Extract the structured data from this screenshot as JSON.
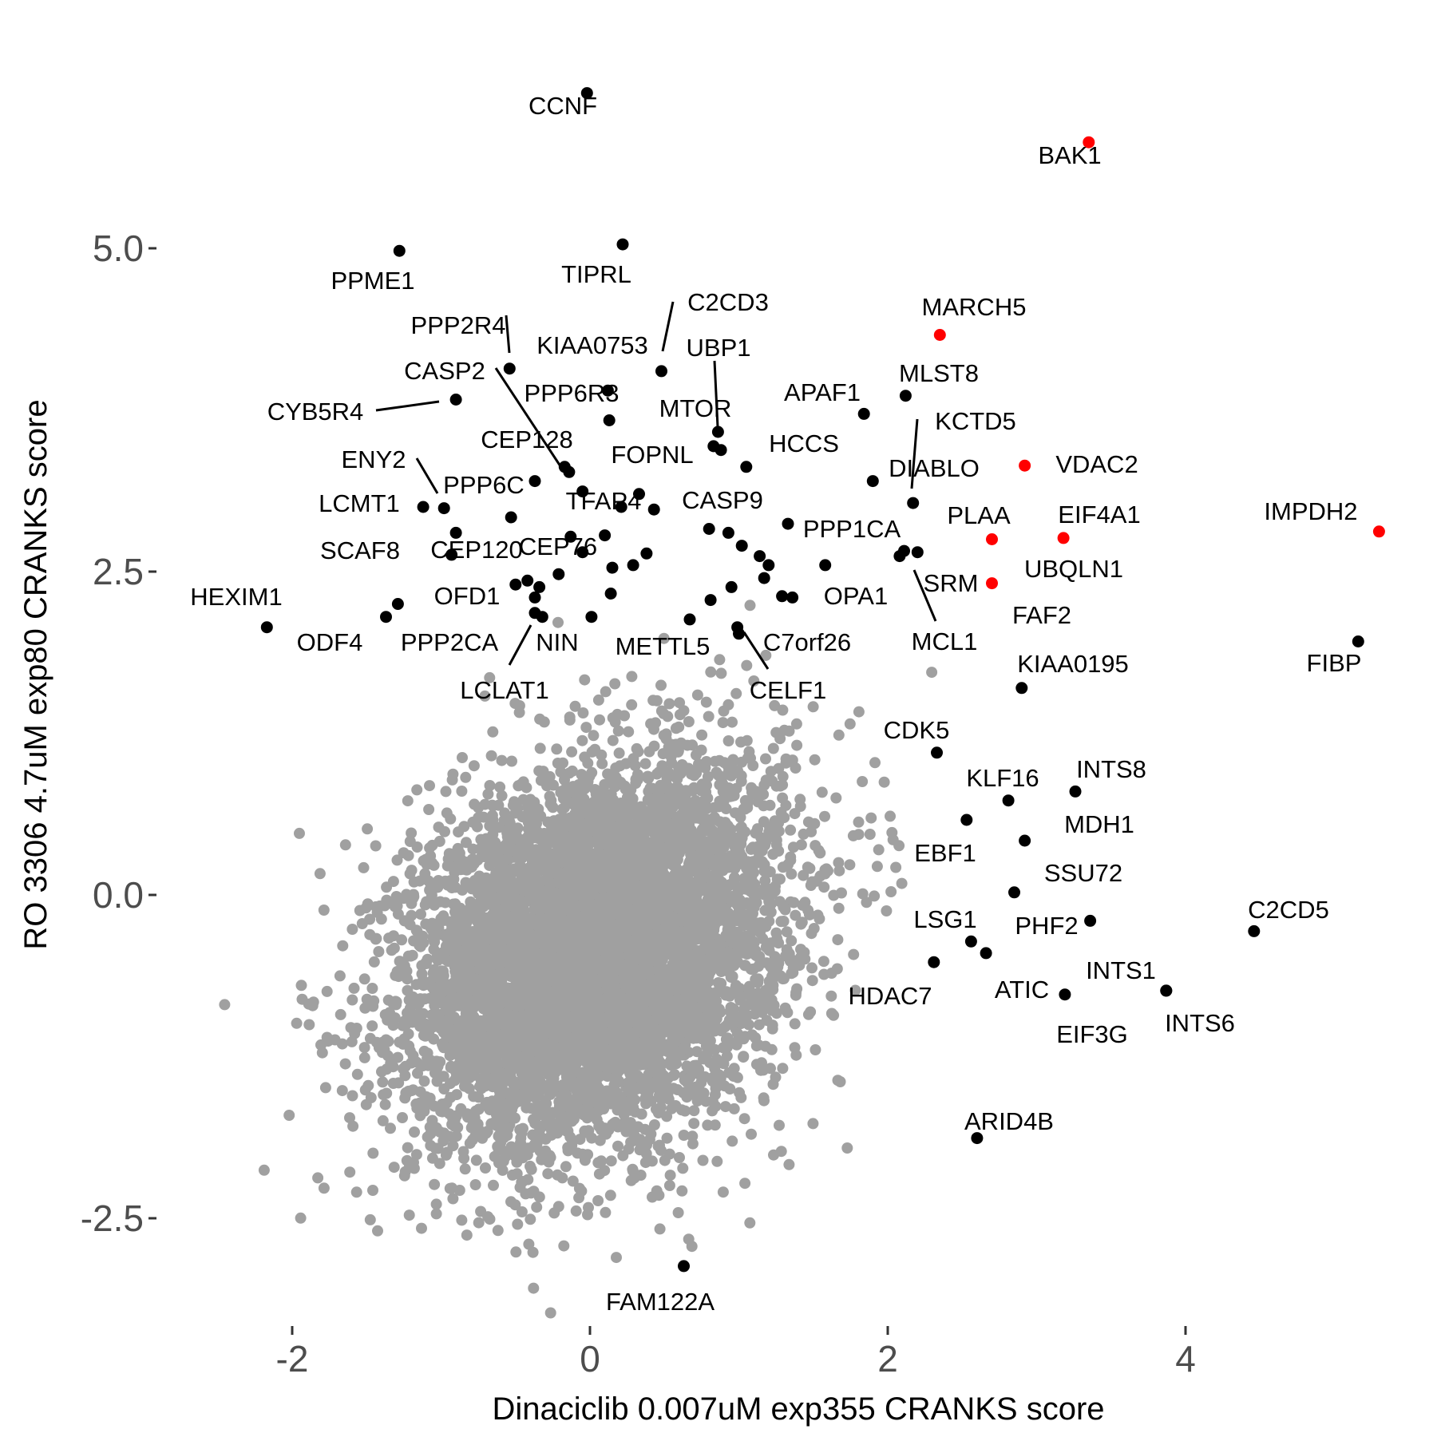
{
  "chart_data": {
    "type": "scatter",
    "title": "",
    "xlabel": "Dinaciclib 0.007uM exp355 CRANKS score",
    "ylabel": "RO 3306 4.7uM exp80 CRANKS score",
    "xlim": [
      -2.52,
      5.35
    ],
    "ylim": [
      -3.2,
      6.6
    ],
    "x_ticks": [
      -2,
      0,
      2,
      4
    ],
    "x_tick_labels": [
      "-2",
      "0",
      "2",
      "4"
    ],
    "y_ticks": [
      -2.5,
      0,
      2.5,
      5
    ],
    "y_tick_labels": [
      "-2.5",
      "0.0",
      "2.5",
      "5.0"
    ],
    "grid": false,
    "legend": "none",
    "colors": {
      "background_points": "#a0a0a0",
      "highlight": "#000000",
      "red": "#ff0000",
      "tick_text": "#4d4d4d"
    },
    "background_cloud": {
      "center": [
        0.05,
        -0.45
      ],
      "sd": [
        0.62,
        0.72
      ],
      "color": "#a0a0a0"
    },
    "labeled_points": [
      {
        "label": "CCNF",
        "x": -0.02,
        "y": 6.2,
        "color": "black"
      },
      {
        "label": "BAK1",
        "x": 3.35,
        "y": 5.82,
        "color": "red"
      },
      {
        "label": "PPME1",
        "x": -1.28,
        "y": 4.98,
        "color": "black"
      },
      {
        "label": "TIPRL",
        "x": 0.22,
        "y": 5.03,
        "color": "black"
      },
      {
        "label": "MARCH5",
        "x": 2.35,
        "y": 4.33,
        "color": "red"
      },
      {
        "label": "C2CD3",
        "x": 0.48,
        "y": 4.05,
        "color": "black"
      },
      {
        "label": "UBP1",
        "x": 0.86,
        "y": 3.58,
        "color": "black"
      },
      {
        "label": "PPP2R4",
        "x": -0.54,
        "y": 4.07,
        "color": "black"
      },
      {
        "label": "KIAA0753",
        "x": 0.12,
        "y": 3.9,
        "color": "black"
      },
      {
        "label": "CASP2",
        "x": -0.14,
        "y": 3.27,
        "color": "black"
      },
      {
        "label": "CYB5R4",
        "x": -0.9,
        "y": 3.83,
        "color": "black"
      },
      {
        "label": "PPP6R3",
        "x": 0.13,
        "y": 3.67,
        "color": "black"
      },
      {
        "label": "MTOR",
        "x": 0.88,
        "y": 3.44,
        "color": "black"
      },
      {
        "label": "APAF1",
        "x": 1.84,
        "y": 3.72,
        "color": "black"
      },
      {
        "label": "MLST8",
        "x": 2.12,
        "y": 3.86,
        "color": "black"
      },
      {
        "label": "KCTD5",
        "x": 2.17,
        "y": 3.03,
        "color": "black"
      },
      {
        "label": "CEP128",
        "x": -0.17,
        "y": 3.31,
        "color": "black"
      },
      {
        "label": "FOPNL",
        "x": 0.83,
        "y": 3.47,
        "color": "black"
      },
      {
        "label": "HCCS",
        "x": 1.05,
        "y": 3.31,
        "color": "black"
      },
      {
        "label": "ENY2",
        "x": -0.98,
        "y": 2.99,
        "color": "black"
      },
      {
        "label": "DIABLO",
        "x": 1.9,
        "y": 3.2,
        "color": "black"
      },
      {
        "label": "VDAC2",
        "x": 2.92,
        "y": 3.32,
        "color": "red"
      },
      {
        "label": "PPP6C",
        "x": -0.37,
        "y": 3.2,
        "color": "black"
      },
      {
        "label": "LCMT1",
        "x": -1.12,
        "y": 3.0,
        "color": "black"
      },
      {
        "label": "TFAP4",
        "x": 0.33,
        "y": 3.1,
        "color": "black"
      },
      {
        "label": "CASP9",
        "x": 0.43,
        "y": 2.98,
        "color": "black"
      },
      {
        "label": "PLAA",
        "x": 2.7,
        "y": 2.75,
        "color": "red"
      },
      {
        "label": "EIF4A1",
        "x": 3.18,
        "y": 2.76,
        "color": "red"
      },
      {
        "label": "IMPDH2",
        "x": 5.3,
        "y": 2.81,
        "color": "red"
      },
      {
        "label": "SCAF8",
        "x": -0.9,
        "y": 2.8,
        "color": "black"
      },
      {
        "label": "CEP120",
        "x": -0.93,
        "y": 2.63,
        "color": "black"
      },
      {
        "label": "CEP76",
        "x": -0.13,
        "y": 2.77,
        "color": "black"
      },
      {
        "label": "PPP1CA",
        "x": 1.33,
        "y": 2.87,
        "color": "black"
      },
      {
        "label": "SRM",
        "x": 2.2,
        "y": 2.65,
        "color": "black"
      },
      {
        "label": "UBQLN1",
        "x": 2.7,
        "y": 2.41,
        "color": "red"
      },
      {
        "label": "HEXIM1",
        "x": -2.17,
        "y": 2.07,
        "color": "black"
      },
      {
        "label": "OFD1",
        "x": -0.42,
        "y": 2.43,
        "color": "black"
      },
      {
        "label": "OPA1",
        "x": 1.58,
        "y": 2.55,
        "color": "black"
      },
      {
        "label": "MCL1",
        "x": 2.11,
        "y": 2.66,
        "color": "black"
      },
      {
        "label": "FAF2",
        "x": 1.36,
        "y": 2.3,
        "color": "black"
      },
      {
        "label": "FIBP",
        "x": 5.16,
        "y": 1.96,
        "color": "black"
      },
      {
        "label": "ODF4",
        "x": -1.37,
        "y": 2.15,
        "color": "black"
      },
      {
        "label": "PPP2CA",
        "x": -0.32,
        "y": 2.15,
        "color": "black"
      },
      {
        "label": "NIN",
        "x": -0.37,
        "y": 2.3,
        "color": "black"
      },
      {
        "label": "METTL5",
        "x": 0.67,
        "y": 2.13,
        "color": "black"
      },
      {
        "label": "C7orf26",
        "x": 0.99,
        "y": 2.07,
        "color": "black"
      },
      {
        "label": "LCLAT1",
        "x": -0.37,
        "y": 2.18,
        "color": "black"
      },
      {
        "label": "CELF1",
        "x": 1.0,
        "y": 2.02,
        "color": "black"
      },
      {
        "label": "KIAA0195",
        "x": 2.9,
        "y": 1.6,
        "color": "black"
      },
      {
        "label": "CDK5",
        "x": 2.33,
        "y": 1.1,
        "color": "black"
      },
      {
        "label": "KLF16",
        "x": 2.81,
        "y": 0.73,
        "color": "black"
      },
      {
        "label": "INTS8",
        "x": 3.26,
        "y": 0.8,
        "color": "black"
      },
      {
        "label": "MDH1",
        "x": 2.92,
        "y": 0.42,
        "color": "black"
      },
      {
        "label": "EBF1",
        "x": 2.53,
        "y": 0.58,
        "color": "black"
      },
      {
        "label": "SSU72",
        "x": 2.85,
        "y": 0.02,
        "color": "black"
      },
      {
        "label": "C2CD5",
        "x": 4.46,
        "y": -0.28,
        "color": "black"
      },
      {
        "label": "LSG1",
        "x": 2.56,
        "y": -0.36,
        "color": "black"
      },
      {
        "label": "PHF2",
        "x": 3.36,
        "y": -0.2,
        "color": "black"
      },
      {
        "label": "INTS1",
        "x": 3.87,
        "y": -0.74,
        "color": "black"
      },
      {
        "label": "ATIC",
        "x": 2.66,
        "y": -0.45,
        "color": "black"
      },
      {
        "label": "HDAC7",
        "x": 2.31,
        "y": -0.52,
        "color": "black"
      },
      {
        "label": "EIF3G",
        "x": 3.19,
        "y": -0.77,
        "color": "black"
      },
      {
        "label": "INTS6",
        "x": 3.87,
        "y": -0.74,
        "color": "black"
      },
      {
        "label": "ARID4B",
        "x": 2.6,
        "y": -1.88,
        "color": "black"
      },
      {
        "label": "FAM122A",
        "x": 0.63,
        "y": -2.87,
        "color": "black"
      }
    ],
    "extra_points": [
      {
        "x": -0.53,
        "y": 2.92,
        "color": "black"
      },
      {
        "x": 0.1,
        "y": 2.78,
        "color": "black"
      },
      {
        "x": -0.05,
        "y": 2.65,
        "color": "black"
      },
      {
        "x": 0.38,
        "y": 2.64,
        "color": "black"
      },
      {
        "x": 0.8,
        "y": 2.83,
        "color": "black"
      },
      {
        "x": 0.93,
        "y": 2.8,
        "color": "black"
      },
      {
        "x": 1.02,
        "y": 2.7,
        "color": "black"
      },
      {
        "x": 1.14,
        "y": 2.62,
        "color": "black"
      },
      {
        "x": 0.29,
        "y": 2.55,
        "color": "black"
      },
      {
        "x": 0.15,
        "y": 2.53,
        "color": "black"
      },
      {
        "x": -0.5,
        "y": 2.4,
        "color": "black"
      },
      {
        "x": -0.34,
        "y": 2.38,
        "color": "black"
      },
      {
        "x": -0.21,
        "y": 2.48,
        "color": "black"
      },
      {
        "x": 0.14,
        "y": 2.33,
        "color": "black"
      },
      {
        "x": 0.81,
        "y": 2.28,
        "color": "black"
      },
      {
        "x": 0.95,
        "y": 2.38,
        "color": "black"
      },
      {
        "x": 1.17,
        "y": 2.45,
        "color": "black"
      },
      {
        "x": 1.29,
        "y": 2.31,
        "color": "black"
      },
      {
        "x": -1.29,
        "y": 2.25,
        "color": "black"
      },
      {
        "x": 0.21,
        "y": 3.0,
        "color": "black"
      },
      {
        "x": 0.01,
        "y": 2.15,
        "color": "black"
      },
      {
        "x": -0.05,
        "y": 3.12,
        "color": "black"
      },
      {
        "x": 2.08,
        "y": 2.62,
        "color": "black"
      },
      {
        "x": 1.2,
        "y": 2.55,
        "color": "black"
      }
    ]
  }
}
